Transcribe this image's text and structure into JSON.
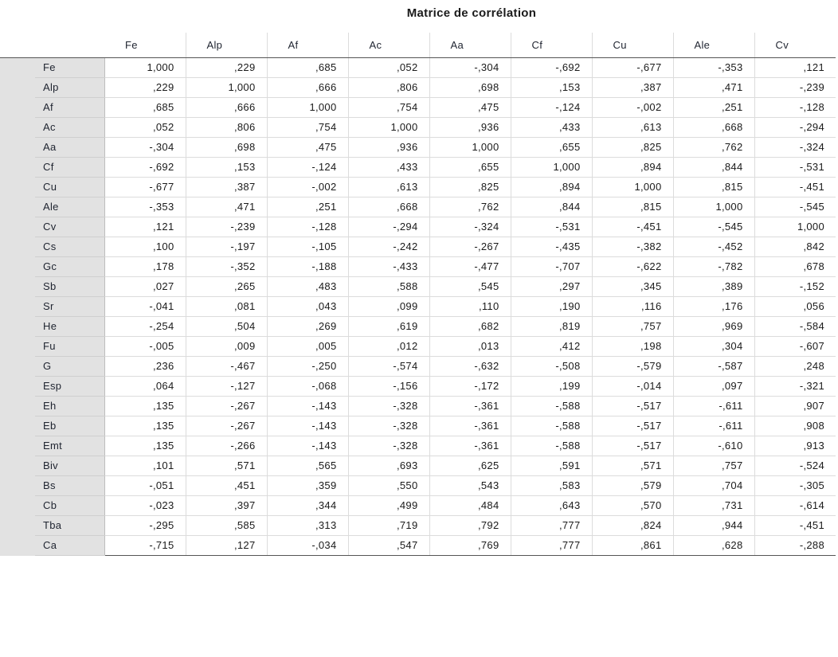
{
  "title": "Matrice de corrélation",
  "columns": [
    "Fe",
    "Alp",
    "Af",
    "Ac",
    "Aa",
    "Cf",
    "Cu",
    "Ale",
    "Cv"
  ],
  "rows": [
    {
      "label": "Fe",
      "values": [
        "1,000",
        ",229",
        ",685",
        ",052",
        "-,304",
        "-,692",
        "-,677",
        "-,353",
        ",121"
      ]
    },
    {
      "label": "Alp",
      "values": [
        ",229",
        "1,000",
        ",666",
        ",806",
        ",698",
        ",153",
        ",387",
        ",471",
        "-,239"
      ]
    },
    {
      "label": "Af",
      "values": [
        ",685",
        ",666",
        "1,000",
        ",754",
        ",475",
        "-,124",
        "-,002",
        ",251",
        "-,128"
      ]
    },
    {
      "label": "Ac",
      "values": [
        ",052",
        ",806",
        ",754",
        "1,000",
        ",936",
        ",433",
        ",613",
        ",668",
        "-,294"
      ]
    },
    {
      "label": "Aa",
      "values": [
        "-,304",
        ",698",
        ",475",
        ",936",
        "1,000",
        ",655",
        ",825",
        ",762",
        "-,324"
      ]
    },
    {
      "label": "Cf",
      "values": [
        "-,692",
        ",153",
        "-,124",
        ",433",
        ",655",
        "1,000",
        ",894",
        ",844",
        "-,531"
      ]
    },
    {
      "label": "Cu",
      "values": [
        "-,677",
        ",387",
        "-,002",
        ",613",
        ",825",
        ",894",
        "1,000",
        ",815",
        "-,451"
      ]
    },
    {
      "label": "Ale",
      "values": [
        "-,353",
        ",471",
        ",251",
        ",668",
        ",762",
        ",844",
        ",815",
        "1,000",
        "-,545"
      ]
    },
    {
      "label": "Cv",
      "values": [
        ",121",
        "-,239",
        "-,128",
        "-,294",
        "-,324",
        "-,531",
        "-,451",
        "-,545",
        "1,000"
      ]
    },
    {
      "label": "Cs",
      "values": [
        ",100",
        "-,197",
        "-,105",
        "-,242",
        "-,267",
        "-,435",
        "-,382",
        "-,452",
        ",842"
      ]
    },
    {
      "label": "Gc",
      "values": [
        ",178",
        "-,352",
        "-,188",
        "-,433",
        "-,477",
        "-,707",
        "-,622",
        "-,782",
        ",678"
      ]
    },
    {
      "label": "Sb",
      "values": [
        ",027",
        ",265",
        ",483",
        ",588",
        ",545",
        ",297",
        ",345",
        ",389",
        "-,152"
      ]
    },
    {
      "label": "Sr",
      "values": [
        "-,041",
        ",081",
        ",043",
        ",099",
        ",110",
        ",190",
        ",116",
        ",176",
        ",056"
      ]
    },
    {
      "label": "He",
      "values": [
        "-,254",
        ",504",
        ",269",
        ",619",
        ",682",
        ",819",
        ",757",
        ",969",
        "-,584"
      ]
    },
    {
      "label": "Fu",
      "values": [
        "-,005",
        ",009",
        ",005",
        ",012",
        ",013",
        ",412",
        ",198",
        ",304",
        "-,607"
      ]
    },
    {
      "label": "G",
      "values": [
        ",236",
        "-,467",
        "-,250",
        "-,574",
        "-,632",
        "-,508",
        "-,579",
        "-,587",
        ",248"
      ]
    },
    {
      "label": "Esp",
      "values": [
        ",064",
        "-,127",
        "-,068",
        "-,156",
        "-,172",
        ",199",
        "-,014",
        ",097",
        "-,321"
      ]
    },
    {
      "label": "Eh",
      "values": [
        ",135",
        "-,267",
        "-,143",
        "-,328",
        "-,361",
        "-,588",
        "-,517",
        "-,611",
        ",907"
      ]
    },
    {
      "label": "Eb",
      "values": [
        ",135",
        "-,267",
        "-,143",
        "-,328",
        "-,361",
        "-,588",
        "-,517",
        "-,611",
        ",908"
      ]
    },
    {
      "label": "Emt",
      "values": [
        ",135",
        "-,266",
        "-,143",
        "-,328",
        "-,361",
        "-,588",
        "-,517",
        "-,610",
        ",913"
      ]
    },
    {
      "label": "Biv",
      "values": [
        ",101",
        ",571",
        ",565",
        ",693",
        ",625",
        ",591",
        ",571",
        ",757",
        "-,524"
      ]
    },
    {
      "label": "Bs",
      "values": [
        "-,051",
        ",451",
        ",359",
        ",550",
        ",543",
        ",583",
        ",579",
        ",704",
        "-,305"
      ]
    },
    {
      "label": "Cb",
      "values": [
        "-,023",
        ",397",
        ",344",
        ",499",
        ",484",
        ",643",
        ",570",
        ",731",
        "-,614"
      ]
    },
    {
      "label": "Tba",
      "values": [
        "-,295",
        ",585",
        ",313",
        ",719",
        ",792",
        ",777",
        ",824",
        ",944",
        "-,451"
      ]
    },
    {
      "label": "Ca",
      "values": [
        "-,715",
        ",127",
        "-,034",
        ",547",
        ",769",
        ",777",
        ",861",
        ",628",
        "-,288"
      ]
    }
  ]
}
